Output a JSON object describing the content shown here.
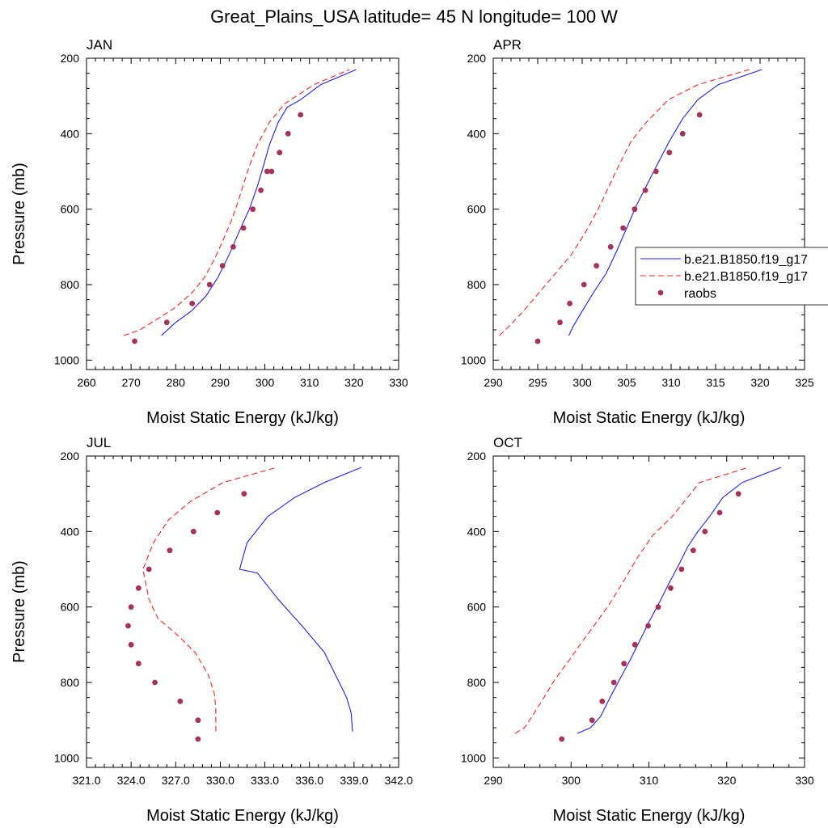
{
  "figure_title": "Great_Plains_USA  latitude= 45 N longitude= 100 W",
  "legend": {
    "entries": [
      {
        "label": "b.e21.B1850.f19_g17",
        "style": "solid",
        "color": "#1f1fff"
      },
      {
        "label": "b.e21.B1850.f19_g17",
        "style": "dashed",
        "color": "#ff2020"
      },
      {
        "label": "raobs",
        "style": "marker",
        "color": "#a8305a"
      }
    ]
  },
  "colors": {
    "model_solid": "#1f1fff",
    "model_dashed": "#ff2020",
    "raobs": "#a8305a"
  },
  "chart_data": [
    {
      "type": "line",
      "title": "JAN",
      "xlabel": "Moist Static Energy (kJ/kg)",
      "ylabel": "Pressure (mb)",
      "xlim": [
        260,
        330
      ],
      "xticks": [
        260,
        270,
        280,
        290,
        300,
        310,
        320,
        330
      ],
      "xtick_labels": [
        "260",
        "270",
        "280",
        "290",
        "300",
        "310",
        "320",
        "330"
      ],
      "ylim": [
        200,
        1025
      ],
      "yticks": [
        200,
        400,
        600,
        800,
        1000
      ],
      "ytick_labels": [
        "200",
        "400",
        "600",
        "800",
        "1000"
      ],
      "y_inverted": true,
      "series": [
        {
          "name": "b.e21.B1850.f19_g17",
          "style": "solid",
          "x": [
            276.8,
            280.0,
            283.5,
            286.8,
            289.5,
            292.0,
            294.2,
            296.5,
            298.3,
            299.8,
            301.0,
            303.0,
            305.0,
            308.0,
            312.5,
            320.5
          ],
          "y": [
            935,
            900,
            870,
            830,
            780,
            720,
            660,
            600,
            540,
            480,
            430,
            370,
            330,
            310,
            270,
            230
          ]
        },
        {
          "name": "b.e21.B1850.f19_g17",
          "style": "dashed",
          "x": [
            268.3,
            272.0,
            276.0,
            280.0,
            283.8,
            286.5,
            288.8,
            290.7,
            292.5,
            294.0,
            295.3,
            296.7,
            298.3,
            301.0,
            304.5,
            311.0,
            319.0
          ],
          "y": [
            935,
            920,
            890,
            860,
            820,
            780,
            730,
            680,
            630,
            580,
            530,
            480,
            430,
            370,
            320,
            270,
            230
          ]
        },
        {
          "name": "raobs",
          "style": "marker",
          "x": [
            270.8,
            278.0,
            283.7,
            287.6,
            290.5,
            292.9,
            295.2,
            297.3,
            299.1,
            300.5,
            301.5,
            303.3,
            305.2,
            308.0
          ],
          "y": [
            950,
            900,
            850,
            800,
            750,
            700,
            650,
            600,
            550,
            500,
            500,
            450,
            400,
            350
          ]
        }
      ]
    },
    {
      "type": "line",
      "title": "APR",
      "xlabel": "Moist Static Energy (kJ/kg)",
      "ylabel": "",
      "xlim": [
        290,
        325
      ],
      "xticks": [
        290,
        295,
        300,
        305,
        310,
        315,
        320,
        325
      ],
      "xtick_labels": [
        "290",
        "295",
        "300",
        "305",
        "310",
        "315",
        "320",
        "325"
      ],
      "ylim": [
        200,
        1025
      ],
      "yticks": [
        200,
        400,
        600,
        800,
        1000
      ],
      "ytick_labels": [
        "200",
        "400",
        "600",
        "800",
        "1000"
      ],
      "y_inverted": true,
      "series": [
        {
          "name": "b.e21.B1850.f19_g17",
          "style": "solid",
          "x": [
            298.5,
            299.0,
            300.0,
            301.3,
            302.7,
            303.9,
            305.0,
            306.1,
            307.4,
            308.7,
            309.8,
            311.3,
            313.0,
            315.3,
            320.2
          ],
          "y": [
            935,
            910,
            870,
            820,
            770,
            710,
            650,
            590,
            530,
            470,
            420,
            360,
            310,
            270,
            230
          ]
        },
        {
          "name": "b.e21.B1850.f19_g17",
          "style": "dashed",
          "x": [
            290.7,
            291.8,
            293.4,
            295.2,
            297.0,
            298.8,
            300.4,
            301.8,
            303.0,
            304.2,
            305.5,
            307.2,
            309.7,
            313.0,
            318.8
          ],
          "y": [
            935,
            910,
            870,
            820,
            770,
            720,
            660,
            600,
            540,
            480,
            420,
            370,
            310,
            270,
            230
          ]
        },
        {
          "name": "raobs",
          "style": "marker",
          "x": [
            295.0,
            297.5,
            298.6,
            300.2,
            301.6,
            303.2,
            304.6,
            305.9,
            307.1,
            308.3,
            309.8,
            311.3,
            313.2
          ],
          "y": [
            950,
            900,
            850,
            800,
            750,
            700,
            650,
            600,
            550,
            500,
            450,
            400,
            350
          ]
        }
      ]
    },
    {
      "type": "line",
      "title": "JUL",
      "xlabel": "Moist Static Energy (kJ/kg)",
      "ylabel": "Pressure (mb)",
      "xlim": [
        321,
        342
      ],
      "xticks": [
        321,
        324,
        327,
        330,
        333,
        336,
        339,
        342
      ],
      "xtick_labels": [
        "321.0",
        "324.0",
        "327.0",
        "330.0",
        "333.0",
        "336.0",
        "339.0",
        "342.0"
      ],
      "ylim": [
        200,
        1025
      ],
      "yticks": [
        200,
        400,
        600,
        800,
        1000
      ],
      "ytick_labels": [
        "200",
        "400",
        "600",
        "800",
        "1000"
      ],
      "y_inverted": true,
      "series": [
        {
          "name": "b.e21.B1850.f19_g17",
          "style": "solid",
          "x": [
            338.9,
            338.8,
            338.5,
            338.0,
            337.0,
            335.5,
            333.9,
            332.5,
            331.3,
            331.8,
            333.2,
            335.0,
            337.0,
            339.5
          ],
          "y": [
            930,
            880,
            840,
            800,
            720,
            650,
            580,
            510,
            500,
            430,
            360,
            310,
            270,
            230
          ]
        },
        {
          "name": "b.e21.B1850.f19_g17",
          "style": "dashed",
          "x": [
            329.7,
            329.7,
            329.6,
            329.2,
            328.3,
            327.0,
            325.8,
            325.2,
            324.8,
            325.1,
            325.5,
            326.5,
            328.0,
            330.2,
            333.8
          ],
          "y": [
            930,
            870,
            830,
            780,
            720,
            670,
            630,
            580,
            500,
            470,
            430,
            370,
            320,
            270,
            230
          ]
        },
        {
          "name": "raobs",
          "style": "marker",
          "x": [
            328.5,
            328.5,
            327.3,
            325.6,
            324.5,
            324.0,
            323.8,
            324.0,
            324.5,
            325.2,
            326.6,
            328.2,
            329.8,
            331.6
          ],
          "y": [
            950,
            900,
            850,
            800,
            750,
            700,
            650,
            600,
            550,
            500,
            450,
            400,
            350,
            300
          ]
        }
      ]
    },
    {
      "type": "line",
      "title": "OCT",
      "xlabel": "Moist Static Energy (kJ/kg)",
      "ylabel": "",
      "xlim": [
        290,
        330
      ],
      "xticks": [
        290,
        300,
        310,
        320,
        330
      ],
      "xtick_labels": [
        "290",
        "300",
        "310",
        "320",
        "330"
      ],
      "ylim": [
        200,
        1025
      ],
      "yticks": [
        200,
        400,
        600,
        800,
        1000
      ],
      "ytick_labels": [
        "200",
        "400",
        "600",
        "800",
        "1000"
      ],
      "y_inverted": true,
      "series": [
        {
          "name": "b.e21.B1850.f19_g17",
          "style": "solid",
          "x": [
            300.8,
            302.5,
            303.8,
            305.0,
            306.3,
            307.6,
            308.8,
            310.0,
            311.3,
            312.5,
            313.8,
            315.0,
            316.3,
            317.8,
            319.5,
            322.0,
            327.0
          ],
          "y": [
            935,
            920,
            890,
            840,
            790,
            740,
            690,
            640,
            590,
            540,
            490,
            440,
            400,
            360,
            310,
            270,
            230
          ]
        },
        {
          "name": "b.e21.B1850.f19_g17",
          "style": "dashed",
          "x": [
            292.8,
            294.0,
            295.0,
            296.5,
            298.0,
            299.8,
            301.5,
            303.3,
            305.0,
            306.8,
            308.5,
            310.5,
            313.0,
            316.5,
            322.8
          ],
          "y": [
            935,
            920,
            890,
            840,
            790,
            740,
            690,
            640,
            590,
            530,
            470,
            410,
            360,
            270,
            230
          ]
        },
        {
          "name": "raobs",
          "style": "marker",
          "x": [
            298.8,
            302.7,
            304.0,
            305.5,
            306.8,
            308.2,
            309.9,
            311.2,
            312.8,
            314.2,
            315.7,
            317.2,
            319.1,
            321.5
          ],
          "y": [
            950,
            900,
            850,
            800,
            750,
            700,
            650,
            600,
            550,
            500,
            450,
            400,
            350,
            300
          ]
        }
      ]
    }
  ]
}
